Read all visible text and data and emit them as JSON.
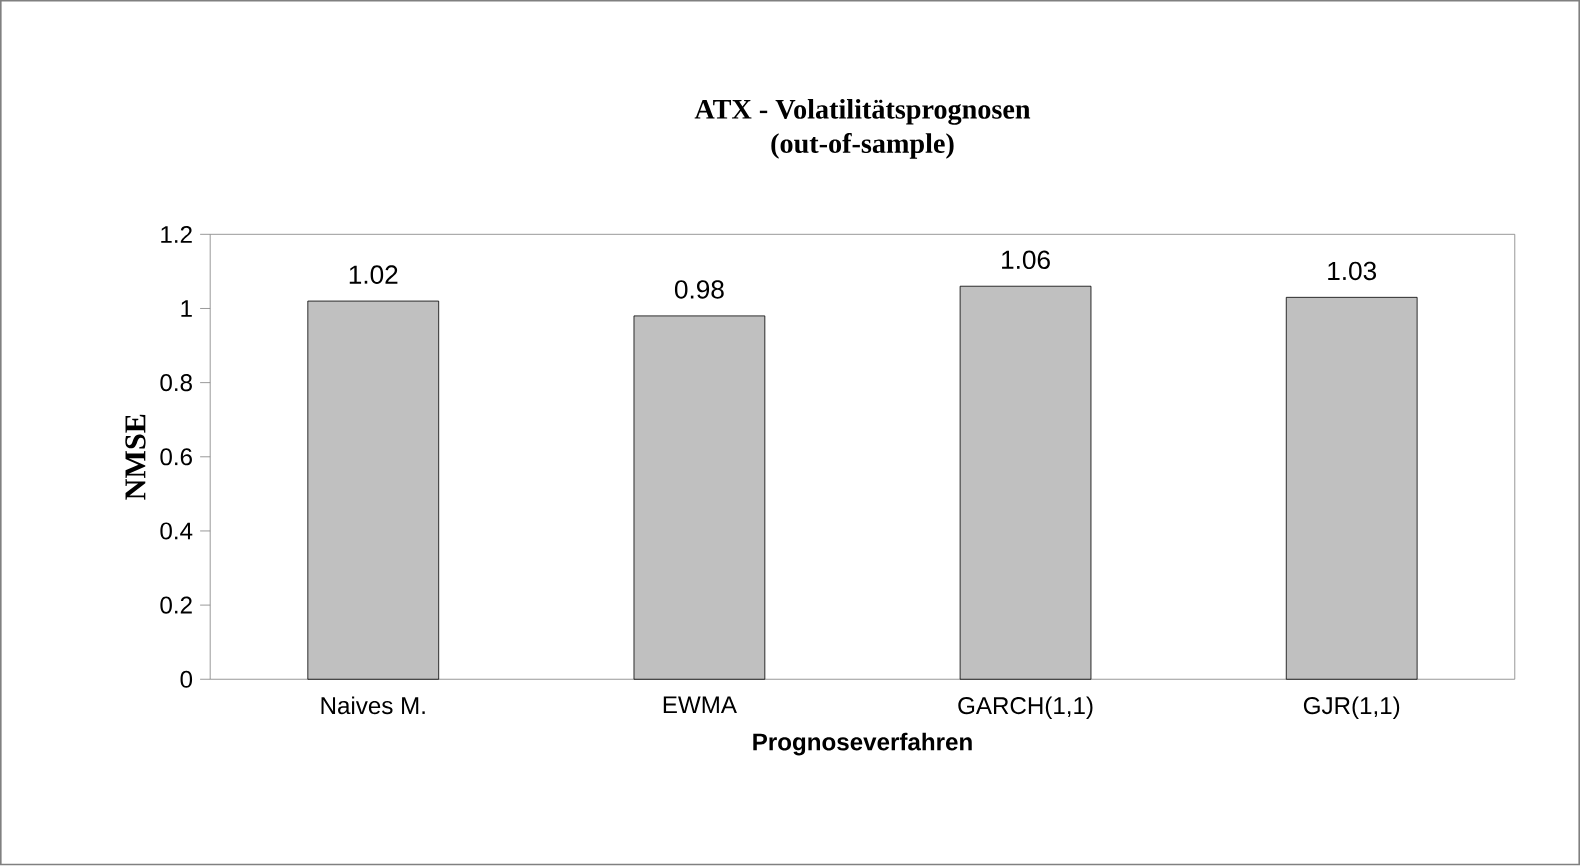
{
  "chart_data": {
    "type": "bar",
    "title": "ATX - Volatilitätsprognosen",
    "subtitle": "(out-of-sample)",
    "xlabel": "Prognoseverfahren",
    "ylabel": "NMSE",
    "categories": [
      "Naives M.",
      "EWMA",
      "GARCH(1,1)",
      "GJR(1,1)"
    ],
    "values": [
      1.02,
      0.98,
      1.06,
      1.03
    ],
    "color": "#c0c0c0",
    "ylim": [
      0,
      1.2
    ],
    "yticks": [
      0,
      0.2,
      0.4,
      0.6,
      0.8,
      1,
      1.2
    ],
    "grid": false,
    "data_labels": true
  }
}
